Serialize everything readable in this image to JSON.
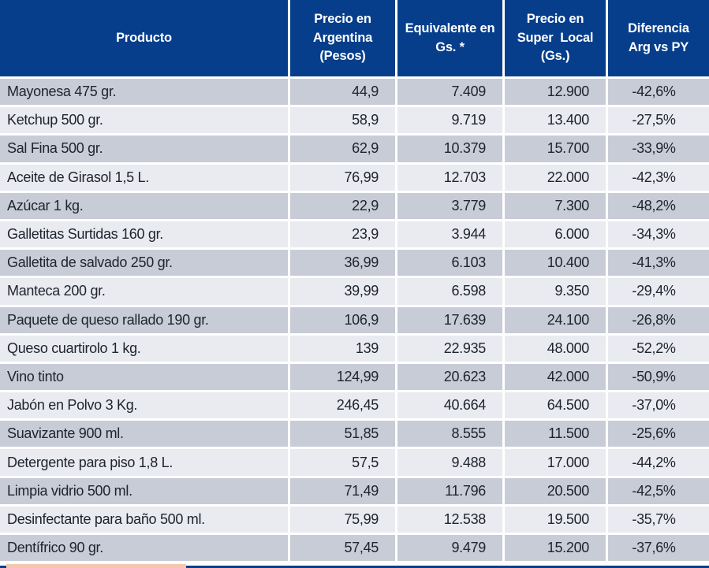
{
  "chart_data": {
    "type": "table",
    "columns": [
      "Producto",
      "Precio en Argentina (Pesos)",
      "Equivalente en Gs. *",
      "Precio en Super Local (Gs.)",
      "Diferencia Arg vs PY"
    ],
    "rows": [
      [
        "Mayonesa 475 gr.",
        "44,9",
        "7.409",
        "12.900",
        "-42,6%"
      ],
      [
        "Ketchup 500 gr.",
        "58,9",
        "9.719",
        "13.400",
        "-27,5%"
      ],
      [
        "Sal Fina 500 gr.",
        "62,9",
        "10.379",
        "15.700",
        "-33,9%"
      ],
      [
        "Aceite de Girasol 1,5 L.",
        "76,99",
        "12.703",
        "22.000",
        "-42,3%"
      ],
      [
        "Azúcar 1 kg.",
        "22,9",
        "3.779",
        "7.300",
        "-48,2%"
      ],
      [
        "Galletitas Surtidas 160 gr.",
        "23,9",
        "3.944",
        "6.000",
        "-34,3%"
      ],
      [
        "Galletita de salvado 250 gr.",
        "36,99",
        "6.103",
        "10.400",
        "-41,3%"
      ],
      [
        "Manteca 200 gr.",
        "39,99",
        "6.598",
        "9.350",
        "-29,4%"
      ],
      [
        "Paquete de queso rallado 190 gr.",
        "106,9",
        "17.639",
        "24.100",
        "-26,8%"
      ],
      [
        "Queso cuartirolo 1 kg.",
        "139",
        "22.935",
        "48.000",
        "-52,2%"
      ],
      [
        "Vino tinto",
        "124,99",
        "20.623",
        "42.000",
        "-50,9%"
      ],
      [
        "Jabón en Polvo 3 Kg.",
        "246,45",
        "40.664",
        "64.500",
        "-37,0%"
      ],
      [
        "Suavizante 900 ml.",
        "51,85",
        "8.555",
        "11.500",
        "-25,6%"
      ],
      [
        "Detergente para piso 1,8 L.",
        "57,5",
        "9.488",
        "17.000",
        "-44,2%"
      ],
      [
        "Limpia vidrio 500 ml.",
        "71,49",
        "11.796",
        "20.500",
        "-42,5%"
      ],
      [
        "Desinfectante para baño 500 ml.",
        "75,99",
        "12.538",
        "19.500",
        "-35,7%"
      ],
      [
        "Dentífrico 90 gr.",
        "57,45",
        "9.479",
        "15.200",
        "-37,6%"
      ]
    ]
  },
  "header_display": [
    "Producto",
    "Precio en\nArgentina\n(Pesos)",
    "Equivalente en\nGs. *",
    "Precio en\nSuper  Local\n(Gs.)",
    "Diferencia\nArg vs PY"
  ],
  "colors": {
    "header_navy": "#063e8c",
    "header_text": "#ffffff",
    "row_dark": "#c8ccd7",
    "row_light": "#e9ebf1",
    "separator_white": "#ffffff",
    "body_text": "#20242e",
    "footnote_salmon": "#f6c6ae"
  }
}
